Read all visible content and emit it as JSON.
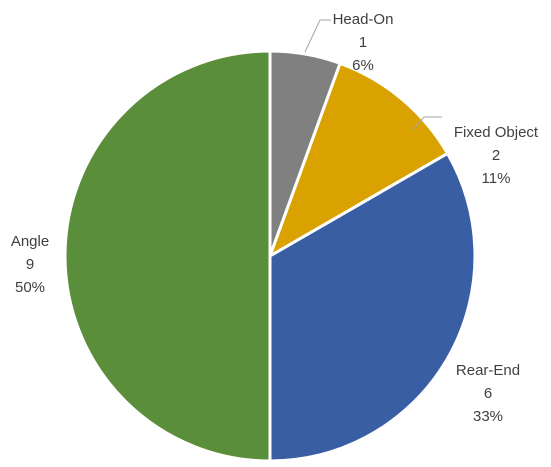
{
  "chart_data": {
    "type": "pie",
    "title": "",
    "start_angle_deg": 0,
    "direction": "clockwise",
    "slices": [
      {
        "label": "Head-On",
        "value": 1,
        "percent": "6%",
        "color": "#808080"
      },
      {
        "label": "Fixed Object",
        "value": 2,
        "percent": "11%",
        "color": "#d9a200"
      },
      {
        "label": "Rear-End",
        "value": 6,
        "percent": "33%",
        "color": "#3a5ea4"
      },
      {
        "label": "Angle",
        "value": 9,
        "percent": "50%",
        "color": "#5b8e3a"
      }
    ],
    "legend": "none",
    "data_labels": "outside with leader lines for small slices"
  }
}
